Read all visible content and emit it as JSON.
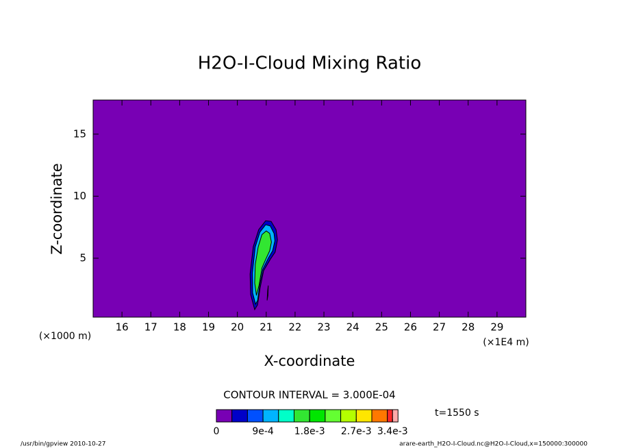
{
  "chart_data": {
    "type": "contour",
    "title": "H2O-I-Cloud Mixing Ratio",
    "x_label": "X-coordinate",
    "y_label": "Z-coordinate",
    "x_unit": "(×1E4 m)",
    "y_unit": "(×1000 m)",
    "xlim": [
      15,
      30
    ],
    "xticks": [
      16,
      17,
      18,
      19,
      20,
      21,
      22,
      23,
      24,
      25,
      26,
      27,
      28,
      29
    ],
    "ylim": [
      0.25,
      17.75
    ],
    "yticks": [
      5,
      10,
      15
    ],
    "contour_interval_label": "CONTOUR INTERVAL = 3.000E-04",
    "time_label": "t=1550 s",
    "footer_left": "/usr/bin/gpview  2010-10-27",
    "footer_right": "arare-earth_H2O-I-Cloud.nc@H2O-I-Cloud,x=150000:300000",
    "colorbar": {
      "levels": [
        0,
        0.0003,
        0.0006,
        0.0009,
        0.0012,
        0.0015,
        0.0018,
        0.0021,
        0.0024,
        0.0027,
        0.003,
        0.0033,
        0.0034
      ],
      "colors": [
        "#7800b4",
        "#0000c8",
        "#0050ff",
        "#00b4ff",
        "#00ffc8",
        "#32e632",
        "#00e600",
        "#64ff32",
        "#b4ff00",
        "#ffe600",
        "#ff7800",
        "#ff2828"
      ],
      "ticks": [
        0,
        {
          "value": 0.0009,
          "label": "9e-4"
        },
        {
          "value": 0.0018,
          "label": "1.8e-3"
        },
        {
          "value": 0.0027,
          "label": "2.7e-3"
        },
        {
          "value": 0.0034,
          "label": "3.4e-3"
        }
      ],
      "over_color": "#ffaaaa"
    },
    "contours": [
      {
        "level": 0.0003,
        "x": [
          20.6,
          20.46,
          20.44,
          20.55,
          20.74,
          20.98,
          21.17,
          21.34,
          21.39,
          21.31,
          21.15,
          20.91,
          20.79,
          20.7
        ],
        "y": [
          0.86,
          2.07,
          3.72,
          5.93,
          7.31,
          8.02,
          7.97,
          7.31,
          6.48,
          5.49,
          4.94,
          4.0,
          2.62,
          1.24
        ]
      },
      {
        "level": 0.0009,
        "x": [
          20.63,
          20.53,
          20.52,
          20.62,
          20.78,
          20.98,
          21.14,
          21.27,
          21.3,
          21.22,
          21.07,
          20.88,
          20.77,
          20.7
        ],
        "y": [
          1.3,
          2.2,
          3.8,
          5.9,
          7.1,
          7.7,
          7.6,
          7.0,
          6.4,
          5.6,
          5.0,
          4.1,
          2.8,
          1.6
        ]
      },
      {
        "level": 0.0015,
        "x": [
          20.66,
          20.6,
          20.62,
          20.72,
          20.85,
          21.0,
          21.12,
          21.18,
          21.12,
          20.98,
          20.85,
          20.75
        ],
        "y": [
          2.0,
          3.0,
          4.5,
          5.9,
          6.9,
          7.2,
          7.0,
          6.3,
          5.6,
          4.9,
          4.2,
          2.8
        ]
      },
      {
        "level": 0.0003,
        "x": [
          21.03,
          21.06,
          21.07,
          21.05
        ],
        "y": [
          1.6,
          2.0,
          2.8,
          2.4
        ]
      }
    ]
  }
}
